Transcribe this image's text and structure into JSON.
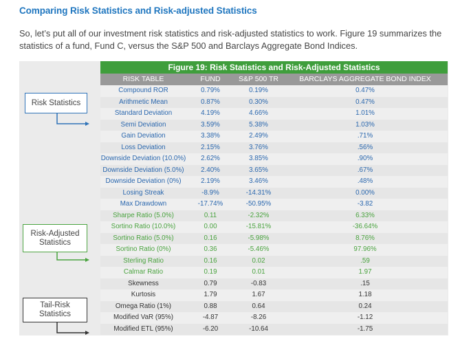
{
  "heading": "Comparing Risk Statistics and Risk-adjusted Statistics",
  "intro": "So, let’s put all of our investment risk statistics and risk-adjusted statistics to work. Figure 19 summarizes the statistics of a fund, Fund C, versus the S&P 500 and Barclays Aggregate Bond Indices.",
  "figure": {
    "title": "Figure 19: Risk Statistics and Risk-Adjusted Statistics",
    "columns": [
      "RISK TABLE",
      "FUND",
      "S&P 500 TR",
      "BARCLAYS AGGREGATE BOND INDEX"
    ],
    "rows": [
      {
        "label": "Compound ROR",
        "group": "risk",
        "fund": "0.79%",
        "sp500": "0.19%",
        "barclays": "0.47%"
      },
      {
        "label": "Arithmetic Mean",
        "group": "risk",
        "fund": "0.87%",
        "sp500": "0.30%",
        "barclays": "0.47%"
      },
      {
        "label": "Standard Deviation",
        "group": "risk",
        "fund": "4.19%",
        "sp500": "4.66%",
        "barclays": "1.01%"
      },
      {
        "label": "Semi Deviation",
        "group": "risk",
        "fund": "3.59%",
        "sp500": "5.38%",
        "barclays": "1.03%"
      },
      {
        "label": "Gain Deviation",
        "group": "risk",
        "fund": "3.38%",
        "sp500": "2.49%",
        "barclays": ".71%"
      },
      {
        "label": "Loss Deviation",
        "group": "risk",
        "fund": "2.15%",
        "sp500": "3.76%",
        "barclays": ".56%"
      },
      {
        "label": "Downside Deviation (10.0%)",
        "group": "risk",
        "fund": "2.62%",
        "sp500": "3.85%",
        "barclays": ".90%"
      },
      {
        "label": "Downside Deviation (5.0%)",
        "group": "risk",
        "fund": "2.40%",
        "sp500": "3.65%",
        "barclays": ".67%"
      },
      {
        "label": "Downside Deviation (0%)",
        "group": "risk",
        "fund": "2.19%",
        "sp500": "3.46%",
        "barclays": ".48%"
      },
      {
        "label": "Losing Streak",
        "group": "risk",
        "fund": "-8.9%",
        "sp500": "-14.31%",
        "barclays": "0.00%"
      },
      {
        "label": "Max Drawdown",
        "group": "risk",
        "fund": "-17.74%",
        "sp500": "-50.95%",
        "barclays": "-3.82"
      },
      {
        "label": "Sharpe Ratio (5.0%)",
        "group": "adjusted",
        "fund": "0.11",
        "sp500": "-2.32%",
        "barclays": "6.33%"
      },
      {
        "label": "Sortino Ratio (10.0%)",
        "group": "adjusted",
        "fund": "0.00",
        "sp500": "-15.81%",
        "barclays": "-36.64%"
      },
      {
        "label": "Sortino Ratio (5.0%)",
        "group": "adjusted",
        "fund": "0.16",
        "sp500": "-5.98%",
        "barclays": "8.76%"
      },
      {
        "label": "Sortino Ratio (0%)",
        "group": "adjusted",
        "fund": "0.36",
        "sp500": "-5.46%",
        "barclays": "97.96%"
      },
      {
        "label": "Sterling Ratio",
        "group": "adjusted",
        "fund": "0.16",
        "sp500": "0.02",
        "barclays": ".59"
      },
      {
        "label": "Calmar Ratio",
        "group": "adjusted",
        "fund": "0.19",
        "sp500": "0.01",
        "barclays": "1.97"
      },
      {
        "label": "Skewness",
        "group": "tail",
        "fund": "0.79",
        "sp500": "-0.83",
        "barclays": ".15"
      },
      {
        "label": "Kurtosis",
        "group": "tail",
        "fund": "1.79",
        "sp500": "1.67",
        "barclays": "1.18"
      },
      {
        "label": "Omega Ratio (1%)",
        "group": "tail",
        "fund": "0.88",
        "sp500": "0.64",
        "barclays": "0.24"
      },
      {
        "label": "Modified VaR (95%)",
        "group": "tail",
        "fund": "-4.87",
        "sp500": "-8.26",
        "barclays": "-1.12"
      },
      {
        "label": "Modified ETL (95%)",
        "group": "tail",
        "fund": "-6.20",
        "sp500": "-10.64",
        "barclays": "-1.75"
      }
    ]
  },
  "callouts": {
    "risk": "Risk Statistics",
    "adjusted": "Risk-Adjusted Statistics",
    "tail": "Tail-Risk Statistics"
  },
  "colors": {
    "heading": "#1f76bf",
    "risk": "#2a67ae",
    "adjusted": "#4aa33f",
    "tail": "#333333",
    "title_bar": "#3f9e3c",
    "header_bar": "#999999"
  }
}
